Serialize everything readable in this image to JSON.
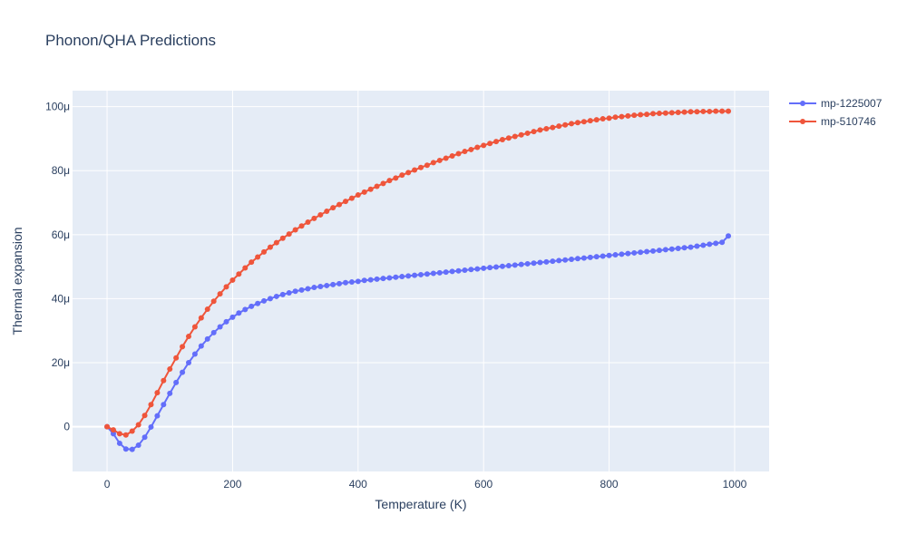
{
  "chart_data": {
    "type": "line",
    "title": "Phonon/QHA Predictions",
    "xlabel": "Temperature (K)",
    "ylabel": "Thermal expansion",
    "xlim": [
      -55,
      1055
    ],
    "ylim": [
      -1.4e-05,
      0.000105
    ],
    "x_ticks": [
      0,
      200,
      400,
      600,
      800,
      1000
    ],
    "x_tick_labels": [
      "0",
      "200",
      "400",
      "600",
      "800",
      "1000"
    ],
    "y_ticks": [
      0,
      2e-05,
      4e-05,
      6e-05,
      8e-05,
      0.0001
    ],
    "y_tick_labels": [
      "0",
      "20μ",
      "40μ",
      "60μ",
      "80μ",
      "100μ"
    ],
    "grid": true,
    "legend_position": "top-right outside",
    "background_color": "#e5ecf6",
    "series": [
      {
        "name": "mp-1225007",
        "color": "#636efa",
        "x": [
          0,
          10,
          20,
          30,
          40,
          50,
          60,
          70,
          80,
          90,
          100,
          110,
          120,
          130,
          140,
          150,
          160,
          170,
          180,
          190,
          200,
          210,
          220,
          230,
          240,
          250,
          260,
          270,
          280,
          290,
          300,
          310,
          320,
          330,
          340,
          350,
          360,
          370,
          380,
          390,
          400,
          410,
          420,
          430,
          440,
          450,
          460,
          470,
          480,
          490,
          500,
          510,
          520,
          530,
          540,
          550,
          560,
          570,
          580,
          590,
          600,
          610,
          620,
          630,
          640,
          650,
          660,
          670,
          680,
          690,
          700,
          710,
          720,
          730,
          740,
          750,
          760,
          770,
          780,
          790,
          800,
          810,
          820,
          830,
          840,
          850,
          860,
          870,
          880,
          890,
          900,
          910,
          920,
          930,
          940,
          950,
          960,
          970,
          980,
          990
        ],
        "y": [
          0,
          -2.2e-06,
          -5.2e-06,
          -7e-06,
          -7.1e-06,
          -5.8e-06,
          -3.3e-06,
          -1e-07,
          3.4e-06,
          6.9e-06,
          1.04e-05,
          1.38e-05,
          1.7e-05,
          2e-05,
          2.27e-05,
          2.52e-05,
          2.74e-05,
          2.94e-05,
          3.12e-05,
          3.28e-05,
          3.42e-05,
          3.55e-05,
          3.66e-05,
          3.76e-05,
          3.85e-05,
          3.93e-05,
          4e-05,
          4.07e-05,
          4.13e-05,
          4.18e-05,
          4.23e-05,
          4.27e-05,
          4.31e-05,
          4.35e-05,
          4.38e-05,
          4.41e-05,
          4.44e-05,
          4.47e-05,
          4.5e-05,
          4.52e-05,
          4.54e-05,
          4.57e-05,
          4.59e-05,
          4.61e-05,
          4.63e-05,
          4.65e-05,
          4.67e-05,
          4.69e-05,
          4.71e-05,
          4.73e-05,
          4.75e-05,
          4.77e-05,
          4.79e-05,
          4.81e-05,
          4.83e-05,
          4.85e-05,
          4.87e-05,
          4.89e-05,
          4.91e-05,
          4.93e-05,
          4.95e-05,
          4.97e-05,
          4.99e-05,
          5.01e-05,
          5.03e-05,
          5.05e-05,
          5.07e-05,
          5.09e-05,
          5.11e-05,
          5.13e-05,
          5.15e-05,
          5.17e-05,
          5.19e-05,
          5.21e-05,
          5.23e-05,
          5.25e-05,
          5.27e-05,
          5.29e-05,
          5.31e-05,
          5.33e-05,
          5.35e-05,
          5.37e-05,
          5.39e-05,
          5.41e-05,
          5.43e-05,
          5.45e-05,
          5.47e-05,
          5.49e-05,
          5.51e-05,
          5.53e-05,
          5.55e-05,
          5.57e-05,
          5.59e-05,
          5.61e-05,
          5.64e-05,
          5.67e-05,
          5.7e-05,
          5.73e-05,
          5.76e-05,
          5.96e-05
        ]
      },
      {
        "name": "mp-510746",
        "color": "#ef553b",
        "x": [
          0,
          10,
          20,
          30,
          40,
          50,
          60,
          70,
          80,
          90,
          100,
          110,
          120,
          130,
          140,
          150,
          160,
          170,
          180,
          190,
          200,
          210,
          220,
          230,
          240,
          250,
          260,
          270,
          280,
          290,
          300,
          310,
          320,
          330,
          340,
          350,
          360,
          370,
          380,
          390,
          400,
          410,
          420,
          430,
          440,
          450,
          460,
          470,
          480,
          490,
          500,
          510,
          520,
          530,
          540,
          550,
          560,
          570,
          580,
          590,
          600,
          610,
          620,
          630,
          640,
          650,
          660,
          670,
          680,
          690,
          700,
          710,
          720,
          730,
          740,
          750,
          760,
          770,
          780,
          790,
          800,
          810,
          820,
          830,
          840,
          850,
          860,
          870,
          880,
          890,
          900,
          910,
          920,
          930,
          940,
          950,
          960,
          970,
          980,
          990
        ],
        "y": [
          0,
          -1e-06,
          -2.2e-06,
          -2.6e-06,
          -1.4e-06,
          6e-07,
          3.5e-06,
          6.9e-06,
          1.06e-05,
          1.44e-05,
          1.8e-05,
          2.15e-05,
          2.5e-05,
          2.82e-05,
          3.12e-05,
          3.4e-05,
          3.67e-05,
          3.92e-05,
          4.15e-05,
          4.37e-05,
          4.58e-05,
          4.77e-05,
          4.96e-05,
          5.14e-05,
          5.3e-05,
          5.46e-05,
          5.61e-05,
          5.75e-05,
          5.89e-05,
          6.02e-05,
          6.15e-05,
          6.27e-05,
          6.39e-05,
          6.51e-05,
          6.62e-05,
          6.73e-05,
          6.84e-05,
          6.94e-05,
          7.04e-05,
          7.14e-05,
          7.24e-05,
          7.33e-05,
          7.42e-05,
          7.51e-05,
          7.6e-05,
          7.69e-05,
          7.77e-05,
          7.86e-05,
          7.94e-05,
          8.02e-05,
          8.1e-05,
          8.17e-05,
          8.25e-05,
          8.32e-05,
          8.39e-05,
          8.46e-05,
          8.53e-05,
          8.6e-05,
          8.66e-05,
          8.73e-05,
          8.79e-05,
          8.85e-05,
          8.91e-05,
          8.97e-05,
          9.02e-05,
          9.07e-05,
          9.12e-05,
          9.17e-05,
          9.22e-05,
          9.27e-05,
          9.31e-05,
          9.35e-05,
          9.39e-05,
          9.43e-05,
          9.47e-05,
          9.5e-05,
          9.53e-05,
          9.56e-05,
          9.59e-05,
          9.62e-05,
          9.64e-05,
          9.67e-05,
          9.69e-05,
          9.71e-05,
          9.73e-05,
          9.75e-05,
          9.76e-05,
          9.78e-05,
          9.79e-05,
          9.8e-05,
          9.81e-05,
          9.82e-05,
          9.83e-05,
          9.84e-05,
          9.84e-05,
          9.85e-05,
          9.85e-05,
          9.86e-05,
          9.86e-05,
          9.86e-05
        ]
      }
    ]
  }
}
